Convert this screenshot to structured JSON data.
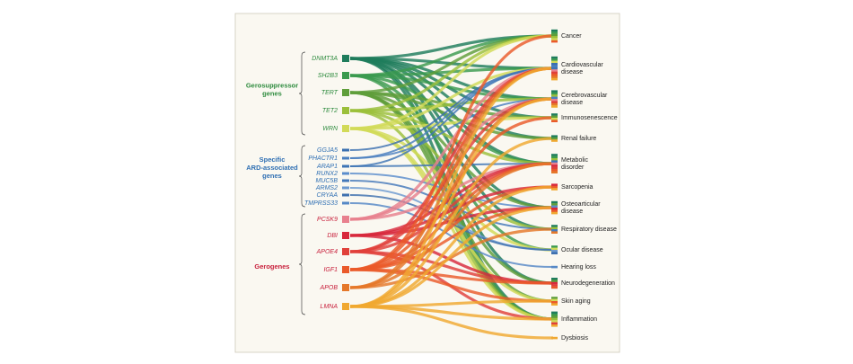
{
  "groups": [
    {
      "lines": [
        "Gerosuppressor",
        "genes"
      ],
      "color": "#2e8b3e",
      "genes": [
        {
          "label": "DNMT3A",
          "color": "#1f7d5c"
        },
        {
          "label": "SH2B3",
          "color": "#3a9a4e"
        },
        {
          "label": "TERT",
          "color": "#5f9e3a"
        },
        {
          "label": "TET2",
          "color": "#9bbf3a"
        },
        {
          "label": "WRN",
          "color": "#d2da58"
        }
      ]
    },
    {
      "lines": [
        "Specific",
        "ARD-associated",
        "genes"
      ],
      "color": "#2f6fb3",
      "genes": [
        {
          "label": "GGJA5",
          "color": "#3a6fb0"
        },
        {
          "label": "PHACTR1",
          "color": "#4a7fc0"
        },
        {
          "label": "ARAP1",
          "color": "#3d74b5"
        },
        {
          "label": "RUNX2",
          "color": "#5a8ccc"
        },
        {
          "label": "MUC5B",
          "color": "#4478ba"
        },
        {
          "label": "ARMS2",
          "color": "#6b98d0"
        },
        {
          "label": "CRYAA",
          "color": "#3e70ae"
        },
        {
          "label": "TMPRSS33",
          "color": "#5588c6"
        }
      ]
    },
    {
      "lines": [
        "Gerogenes"
      ],
      "color": "#c8203c",
      "genes": [
        {
          "label": "PCSK9",
          "color": "#e8808e"
        },
        {
          "label": "DBI",
          "color": "#d8283c"
        },
        {
          "label": "APOE4",
          "color": "#e0403a"
        },
        {
          "label": "IGF1",
          "color": "#ea5a2a"
        },
        {
          "label": "APOB",
          "color": "#e5782a"
        },
        {
          "label": "LMNA",
          "color": "#f0a830"
        }
      ]
    }
  ],
  "diseases": [
    {
      "lines": [
        "Cancer"
      ]
    },
    {
      "lines": [
        "Cardiovascular",
        "disease"
      ]
    },
    {
      "lines": [
        "Cerebrovascular",
        "disease"
      ]
    },
    {
      "lines": [
        "Immunosenescence"
      ]
    },
    {
      "lines": [
        "Renal failure"
      ]
    },
    {
      "lines": [
        "Metabolic",
        "disorder"
      ]
    },
    {
      "lines": [
        "Sarcopenia"
      ]
    },
    {
      "lines": [
        "Osteoarticular",
        "disease"
      ]
    },
    {
      "lines": [
        "Respiratory disease"
      ]
    },
    {
      "lines": [
        "Ocular disease"
      ]
    },
    {
      "lines": [
        "Hearing loss"
      ]
    },
    {
      "lines": [
        "Neurodegeneration"
      ]
    },
    {
      "lines": [
        "Skin aging"
      ]
    },
    {
      "lines": [
        "Inflammation"
      ]
    },
    {
      "lines": [
        "Dysbiosis"
      ]
    }
  ]
}
